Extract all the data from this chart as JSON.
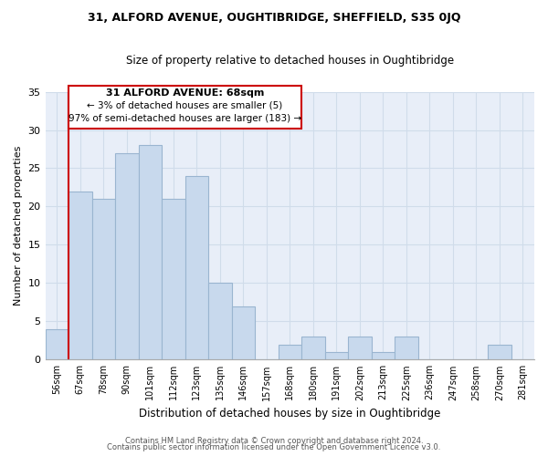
{
  "title": "31, ALFORD AVENUE, OUGHTIBRIDGE, SHEFFIELD, S35 0JQ",
  "subtitle": "Size of property relative to detached houses in Oughtibridge",
  "xlabel": "Distribution of detached houses by size in Oughtibridge",
  "ylabel": "Number of detached properties",
  "bar_labels": [
    "56sqm",
    "67sqm",
    "78sqm",
    "90sqm",
    "101sqm",
    "112sqm",
    "123sqm",
    "135sqm",
    "146sqm",
    "157sqm",
    "168sqm",
    "180sqm",
    "191sqm",
    "202sqm",
    "213sqm",
    "225sqm",
    "236sqm",
    "247sqm",
    "258sqm",
    "270sqm",
    "281sqm"
  ],
  "bar_heights": [
    4,
    22,
    21,
    27,
    28,
    21,
    24,
    10,
    7,
    0,
    2,
    3,
    1,
    3,
    1,
    3,
    0,
    0,
    0,
    2,
    0
  ],
  "bar_color": "#c8d9ed",
  "bar_edge_color": "#9ab5d0",
  "annotation_line1": "31 ALFORD AVENUE: 68sqm",
  "annotation_line2": "← 3% of detached houses are smaller (5)",
  "annotation_line3": "97% of semi-detached houses are larger (183) →",
  "ylim": [
    0,
    35
  ],
  "yticks": [
    0,
    5,
    10,
    15,
    20,
    25,
    30,
    35
  ],
  "footer1": "Contains HM Land Registry data © Crown copyright and database right 2024.",
  "footer2": "Contains public sector information licensed under the Open Government Licence v3.0.",
  "annotation_box_color": "#ffffff",
  "annotation_box_edge": "#cc0000",
  "property_line_color": "#cc0000",
  "grid_color": "#d0dcea",
  "bg_color": "#e8eef8"
}
